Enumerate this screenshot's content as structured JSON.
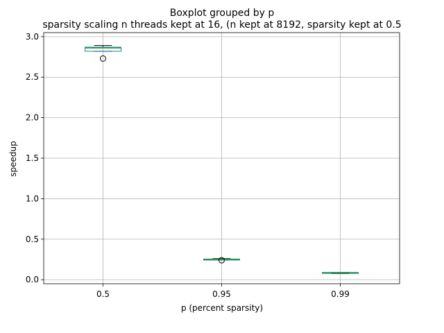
{
  "chart_data": {
    "type": "boxplot",
    "suptitle": "Boxplot grouped by p",
    "title": "sparsity scaling n threads kept at 16, (n kept at 8192, sparsity kept at 0.5",
    "xlabel": "p (percent sparsity)",
    "ylabel": "speedup",
    "ylim": [
      -0.05,
      3.05
    ],
    "yticks": [
      0.0,
      0.5,
      1.0,
      1.5,
      2.0,
      2.5,
      3.0
    ],
    "ytick_labels": [
      "0.0",
      "0.5",
      "1.0",
      "1.5",
      "2.0",
      "2.5",
      "3.0"
    ],
    "grid": true,
    "categories": [
      "0.5",
      "0.95",
      "0.99"
    ],
    "boxes": [
      {
        "category": "0.5",
        "whisker_low": 2.82,
        "q1": 2.82,
        "median": 2.86,
        "q3": 2.87,
        "whisker_high": 2.89,
        "outliers": [
          2.73
        ]
      },
      {
        "category": "0.95",
        "whisker_low": 0.25,
        "q1": 0.25,
        "median": 0.25,
        "q3": 0.255,
        "whisker_high": 0.26,
        "outliers": [
          0.24
        ]
      },
      {
        "category": "0.99",
        "whisker_low": 0.075,
        "q1": 0.08,
        "median": 0.085,
        "q3": 0.09,
        "whisker_high": 0.09,
        "outliers": []
      }
    ],
    "colors": {
      "box": "#1f77b4",
      "median": "#2ca02c",
      "whisker": "#000000",
      "grid": "#b0b0b0",
      "axes": "#000000"
    }
  }
}
